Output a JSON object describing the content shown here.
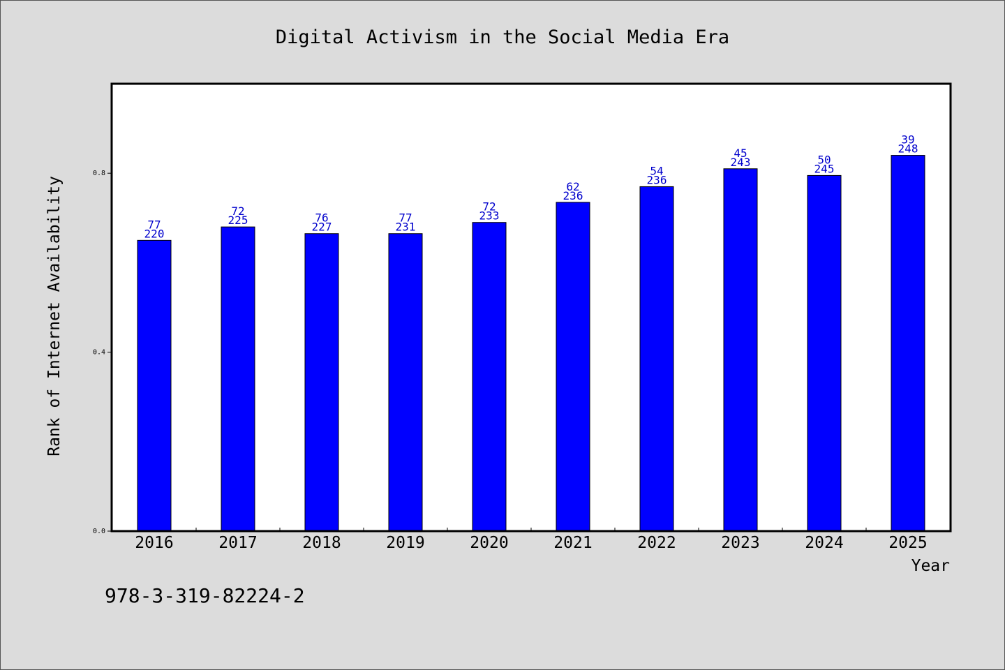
{
  "chart_data": {
    "type": "bar",
    "title": "Digital Activism in the Social Media Era",
    "xlabel": "Year",
    "ylabel": "Rank of Internet Availability",
    "categories": [
      "2016",
      "2017",
      "2018",
      "2019",
      "2020",
      "2021",
      "2022",
      "2023",
      "2024",
      "2025"
    ],
    "values": [
      0.65,
      0.68,
      0.665,
      0.665,
      0.69,
      0.735,
      0.77,
      0.81,
      0.795,
      0.84
    ],
    "labels_top": [
      "77",
      "72",
      "76",
      "77",
      "72",
      "62",
      "54",
      "45",
      "50",
      "39"
    ],
    "labels_bottom": [
      "220",
      "225",
      "227",
      "231",
      "233",
      "236",
      "236",
      "243",
      "245",
      "248"
    ],
    "yticks": [
      "0.0",
      "0.4",
      "0.8"
    ],
    "ytick_values": [
      0.0,
      0.4,
      0.8
    ],
    "ylim": [
      0,
      1.0
    ],
    "grid": false,
    "bar_color": "#0000ff",
    "label_color": "#0000cc",
    "plot_background": "#ffffff",
    "figure_background": "#dcdcdc"
  },
  "footer": {
    "text": "978-3-319-82224-2"
  }
}
